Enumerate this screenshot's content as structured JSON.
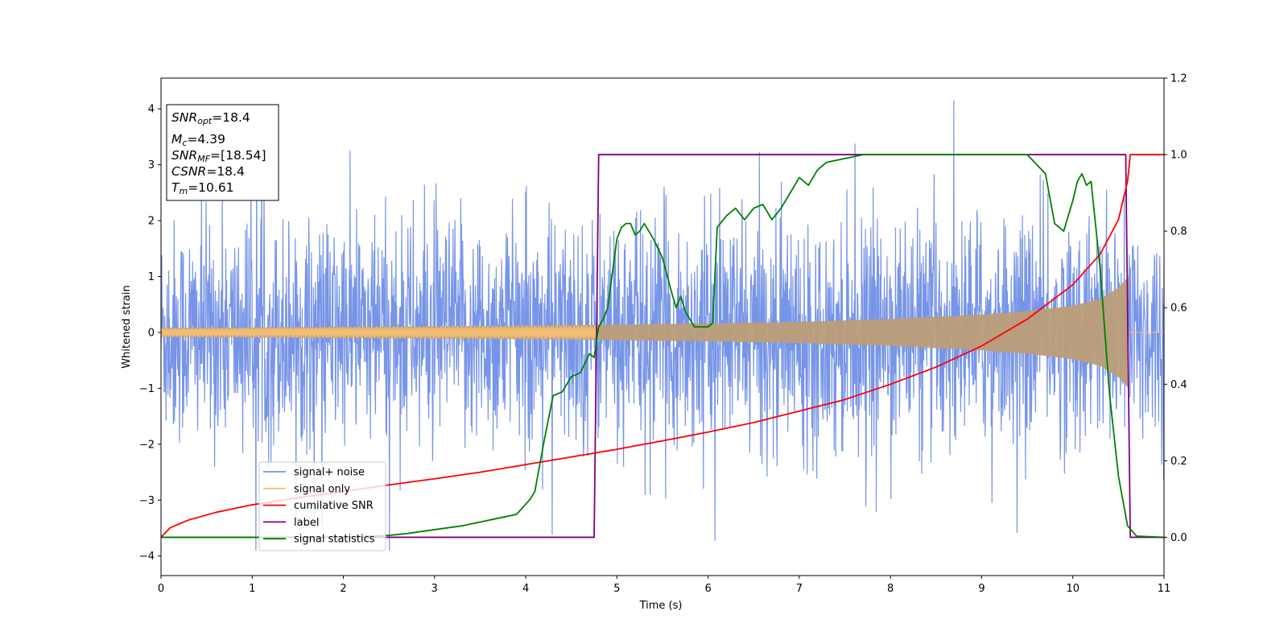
{
  "chart_data": {
    "type": "line",
    "xlabel": "Time (s)",
    "ylabel": "Whitened strain",
    "xlim": [
      0,
      11
    ],
    "ylim_left": [
      -4.35,
      4.55
    ],
    "ylim_right": [
      -0.1,
      1.2
    ],
    "x_ticks": [
      0,
      1,
      2,
      3,
      4,
      5,
      6,
      7,
      8,
      9,
      10,
      11
    ],
    "y_ticks_left": [
      -4,
      -3,
      -2,
      -1,
      0,
      1,
      2,
      3,
      4
    ],
    "y_ticks_right": [
      "0.0",
      "0.2",
      "0.4",
      "0.6",
      "0.8",
      "1.0",
      "1.2"
    ],
    "y_ticks_right_values": [
      0,
      0.2,
      0.4,
      0.6,
      0.8,
      1.0,
      1.2
    ],
    "legend_placement": "lower-left",
    "grid": false,
    "annotation": {
      "lines": [
        {
          "base": "SNR",
          "sub": "opt",
          "rest": "=18.4"
        },
        {
          "base": "M",
          "sub": "c",
          "rest": "=4.39"
        },
        {
          "base": "SNR",
          "sub": "MF",
          "rest": "=[18.54]"
        },
        {
          "base": "CSNR",
          "sub": "",
          "rest": "=18.4"
        },
        {
          "base": "T",
          "sub": "m",
          "rest": "=10.61"
        }
      ]
    },
    "series": [
      {
        "name": "signal+ noise",
        "color": "#7795e8",
        "axis": "left",
        "description_envelope": {
          "typical_amplitude": 1.6,
          "peak_max": 4.15,
          "peak_min": -3.9
        }
      },
      {
        "name": "signal only",
        "color": "#f2be73",
        "axis": "left",
        "envelope": {
          "x": [
            0,
            1,
            2,
            3,
            4,
            5,
            6,
            7,
            8,
            9,
            9.5,
            10,
            10.3,
            10.5,
            10.61
          ],
          "amplitude": [
            0.08,
            0.09,
            0.1,
            0.11,
            0.12,
            0.14,
            0.16,
            0.19,
            0.24,
            0.32,
            0.38,
            0.48,
            0.6,
            0.8,
            1.0
          ]
        }
      },
      {
        "name": "cumilative SNR",
        "color": "#ff0000",
        "axis": "right",
        "x": [
          0,
          0.1,
          0.3,
          0.6,
          1,
          1.5,
          2,
          2.5,
          3,
          3.5,
          4,
          4.5,
          5,
          5.5,
          6,
          6.5,
          7,
          7.5,
          8,
          8.5,
          9,
          9.5,
          10,
          10.3,
          10.5,
          10.6,
          10.63,
          11
        ],
        "y": [
          0.0,
          0.025,
          0.045,
          0.065,
          0.085,
          0.103,
          0.12,
          0.137,
          0.153,
          0.17,
          0.19,
          0.21,
          0.23,
          0.252,
          0.275,
          0.3,
          0.33,
          0.36,
          0.4,
          0.445,
          0.5,
          0.57,
          0.66,
          0.74,
          0.83,
          0.93,
          1.0,
          1.0
        ]
      },
      {
        "name": "label",
        "color": "#800080",
        "axis": "right",
        "x": [
          0,
          4.75,
          4.8,
          10.58,
          10.63,
          11
        ],
        "y": [
          0,
          0,
          1,
          1,
          0,
          0
        ]
      },
      {
        "name": "signal statistics",
        "color": "#008000",
        "axis": "right",
        "x": [
          0,
          1,
          2,
          2.5,
          2.7,
          3,
          3.3,
          3.5,
          3.7,
          3.9,
          4.05,
          4.1,
          4.2,
          4.3,
          4.4,
          4.5,
          4.6,
          4.7,
          4.75,
          4.8,
          4.85,
          4.9,
          5.0,
          5.05,
          5.1,
          5.15,
          5.2,
          5.25,
          5.3,
          5.4,
          5.5,
          5.6,
          5.65,
          5.7,
          5.75,
          5.85,
          5.9,
          6.0,
          6.05,
          6.1,
          6.2,
          6.3,
          6.4,
          6.5,
          6.6,
          6.7,
          6.8,
          6.9,
          7.0,
          7.1,
          7.2,
          7.3,
          7.5,
          7.7,
          7.9,
          8.1,
          8.3,
          8.5,
          9.0,
          9.5,
          9.7,
          9.8,
          9.9,
          10.0,
          10.05,
          10.1,
          10.15,
          10.2,
          10.3,
          10.4,
          10.5,
          10.6,
          10.7,
          11
        ],
        "y": [
          0,
          0,
          0.001,
          0.005,
          0.01,
          0.02,
          0.03,
          0.04,
          0.05,
          0.06,
          0.1,
          0.12,
          0.25,
          0.37,
          0.38,
          0.42,
          0.43,
          0.48,
          0.47,
          0.55,
          0.57,
          0.6,
          0.78,
          0.81,
          0.82,
          0.82,
          0.79,
          0.8,
          0.82,
          0.78,
          0.73,
          0.64,
          0.6,
          0.63,
          0.59,
          0.55,
          0.55,
          0.55,
          0.56,
          0.81,
          0.84,
          0.86,
          0.83,
          0.86,
          0.87,
          0.83,
          0.86,
          0.9,
          0.94,
          0.92,
          0.96,
          0.98,
          0.99,
          1.0,
          1.0,
          1.0,
          1.0,
          1.0,
          1.0,
          1.0,
          0.95,
          0.82,
          0.8,
          0.88,
          0.93,
          0.95,
          0.92,
          0.93,
          0.7,
          0.38,
          0.16,
          0.03,
          0.003,
          0
        ]
      }
    ]
  }
}
